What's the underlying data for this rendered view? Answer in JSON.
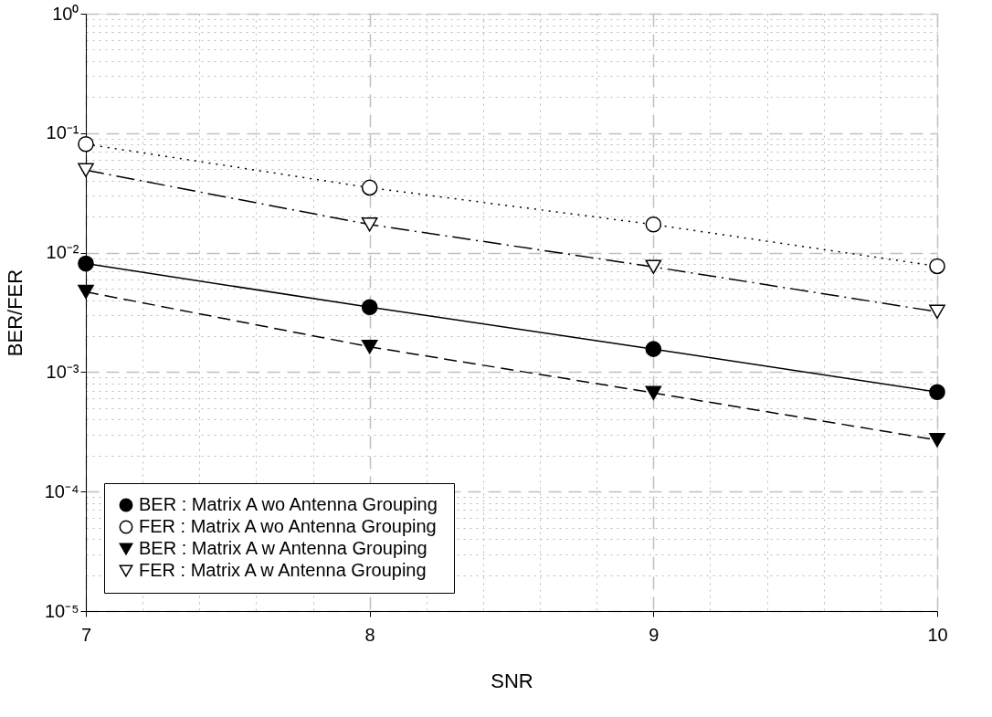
{
  "chart_data": {
    "type": "line",
    "xlabel": "SNR",
    "ylabel": "BER/FER",
    "x": [
      7,
      8,
      9,
      10
    ],
    "series": [
      {
        "name": "BER : Matrix A wo Antenna Grouping",
        "color": "#000000",
        "marker": "circle",
        "line_style": "solid",
        "values": [
          0.0081,
          0.0035,
          0.00156,
          0.00068
        ]
      },
      {
        "name": "FER : Matrix A wo Antenna Grouping",
        "color": "#000000",
        "marker": "circle",
        "line_style": "dotted",
        "values": [
          0.081,
          0.035,
          0.0172,
          0.0077
        ]
      },
      {
        "name": "BER : Matrix A w Antenna Grouping",
        "color": "#000000",
        "marker": "triangle",
        "line_style": "dashed",
        "values": [
          0.0047,
          0.00163,
          0.00067,
          0.00027
        ]
      },
      {
        "name": "FER : Matrix A w Antenna Grouping",
        "color": "#000000",
        "marker": "triangle",
        "line_style": "dashdot",
        "values": [
          0.049,
          0.0172,
          0.0076,
          0.0032
        ]
      }
    ],
    "xlim": [
      7,
      10
    ],
    "xticks": [
      7,
      8,
      9,
      10
    ],
    "ylim": [
      1e-05,
      1
    ],
    "yticks": [
      {
        "value": 1e-05,
        "label": "10⁻⁵"
      },
      {
        "value": 0.0001,
        "label": "10⁻⁴"
      },
      {
        "value": 0.001,
        "label": "10⁻³"
      },
      {
        "value": 0.01,
        "label": "10⁻²"
      },
      {
        "value": 0.1,
        "label": "10⁻¹"
      },
      {
        "value": 1,
        "label": "10⁰"
      }
    ],
    "log": "y",
    "grid": true,
    "legend": "bottom left"
  }
}
